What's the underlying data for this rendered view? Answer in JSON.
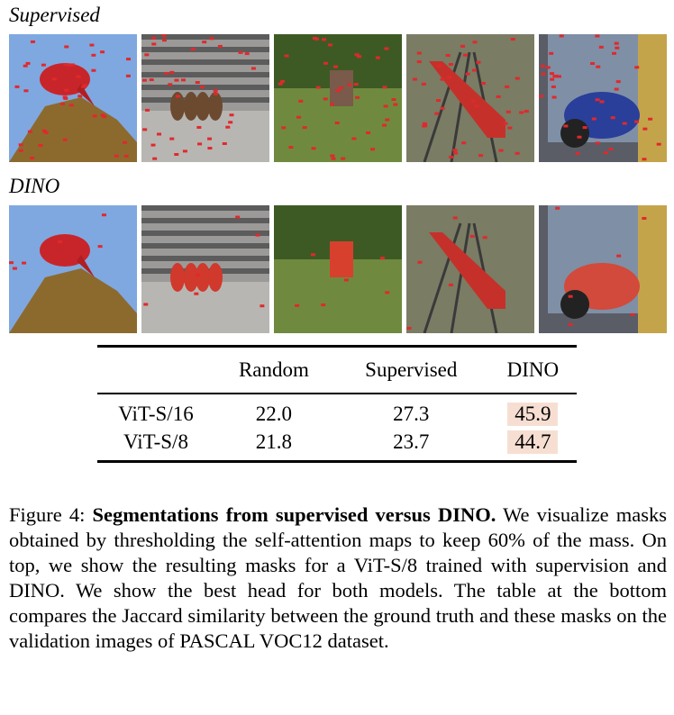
{
  "rows": [
    {
      "label": "Supervised"
    },
    {
      "label": "DINO"
    }
  ],
  "table": {
    "columns": [
      "Random",
      "Supervised",
      "DINO"
    ],
    "rows": [
      {
        "label": "ViT-S/16",
        "values": [
          "22.0",
          "27.3",
          "45.9"
        ]
      },
      {
        "label": "ViT-S/8",
        "values": [
          "21.8",
          "23.7",
          "44.7"
        ]
      }
    ]
  },
  "caption": {
    "label": "Figure 4:",
    "title": "Segmentations from supervised versus DINO.",
    "body": "We visualize masks obtained by thresholding the self-attention maps to keep 60% of the mass. On top, we show the resulting masks for a ViT-S/8 trained with supervision and DINO. We show the best head for both models. The table at the bottom compares the Jaccard similarity between the ground truth and these masks on the validation images of PASCAL VOC12 dataset."
  }
}
